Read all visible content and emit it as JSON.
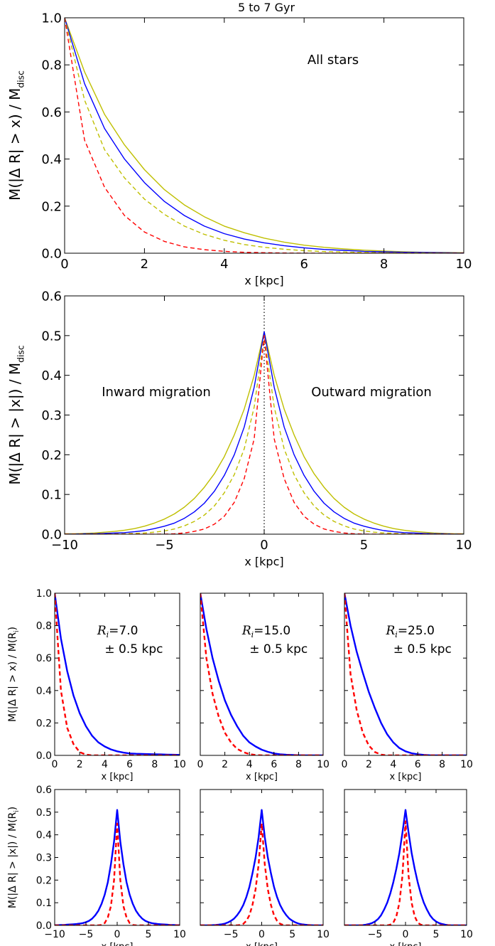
{
  "figure_title": "5 to 7 Gyr",
  "colors": {
    "blue": "#0000ff",
    "red": "#ff0000",
    "olive": "#bfbf00",
    "axis": "#000000"
  },
  "chart_data": [
    {
      "type": "line",
      "title": "5 to 7 Gyr",
      "annotation": "All stars",
      "xlabel": "x [kpc]",
      "ylabel": "M(|Δ R| > x) / M",
      "ylabel_sub": "disc",
      "xlim": [
        0,
        10
      ],
      "ylim": [
        0,
        1
      ],
      "xticks": [
        "0",
        "2",
        "4",
        "6",
        "8",
        "10"
      ],
      "yticks": [
        "0.0",
        "0.2",
        "0.4",
        "0.6",
        "0.8",
        "1.0"
      ],
      "grid": false,
      "x": [
        0,
        0.5,
        1,
        1.5,
        2,
        2.5,
        3,
        3.5,
        4,
        4.5,
        5,
        5.5,
        6,
        6.5,
        7,
        7.5,
        8,
        8.5,
        9,
        9.5,
        10
      ],
      "series": [
        {
          "color": "olive",
          "style": "solid",
          "values": [
            1.0,
            0.77,
            0.59,
            0.46,
            0.355,
            0.27,
            0.205,
            0.155,
            0.115,
            0.087,
            0.064,
            0.047,
            0.034,
            0.025,
            0.018,
            0.013,
            0.009,
            0.006,
            0.004,
            0.003,
            0.002
          ]
        },
        {
          "color": "blue",
          "style": "solid",
          "values": [
            1.0,
            0.72,
            0.53,
            0.4,
            0.3,
            0.22,
            0.16,
            0.115,
            0.083,
            0.06,
            0.044,
            0.032,
            0.023,
            0.016,
            0.012,
            0.008,
            0.006,
            0.004,
            0.003,
            0.002,
            0.001
          ]
        },
        {
          "color": "olive",
          "style": "dashed",
          "values": [
            1.0,
            0.65,
            0.44,
            0.32,
            0.23,
            0.165,
            0.115,
            0.08,
            0.055,
            0.037,
            0.025,
            0.017,
            0.011,
            0.007,
            0.005,
            0.003,
            0.002,
            0.001,
            0.001,
            0.0,
            0.0
          ]
        },
        {
          "color": "red",
          "style": "dashed",
          "values": [
            1.0,
            0.48,
            0.28,
            0.16,
            0.09,
            0.05,
            0.027,
            0.015,
            0.008,
            0.004,
            0.002,
            0.001,
            0.0,
            0.0,
            0.0,
            0.0,
            0.0,
            0.0,
            0.0,
            0.0,
            0.0
          ]
        }
      ]
    },
    {
      "type": "line",
      "annotations": [
        "Inward migration",
        "Outward migration"
      ],
      "xlabel": "x [kpc]",
      "ylabel": "M(|Δ R| > |x|) / M",
      "ylabel_sub": "disc",
      "xlim": [
        -10,
        10
      ],
      "ylim": [
        0,
        0.6
      ],
      "xticks": [
        "−10",
        "−5",
        "0",
        "5",
        "10"
      ],
      "yticks": [
        "0.0",
        "0.1",
        "0.2",
        "0.3",
        "0.4",
        "0.5",
        "0.6"
      ],
      "grid": false,
      "vline_x": 0,
      "x": [
        0,
        0.5,
        1,
        1.5,
        2,
        2.5,
        3,
        3.5,
        4,
        4.5,
        5,
        5.5,
        6,
        6.5,
        7,
        7.5,
        8,
        8.5,
        9,
        9.5,
        10
      ],
      "symmetric_about_zero": true,
      "series": [
        {
          "color": "olive",
          "style": "solid",
          "values": [
            0.51,
            0.4,
            0.315,
            0.25,
            0.195,
            0.152,
            0.118,
            0.09,
            0.068,
            0.051,
            0.038,
            0.028,
            0.02,
            0.014,
            0.01,
            0.007,
            0.005,
            0.003,
            0.002,
            0.001,
            0.001
          ]
        },
        {
          "color": "blue",
          "style": "solid",
          "values": [
            0.51,
            0.37,
            0.27,
            0.2,
            0.148,
            0.108,
            0.078,
            0.056,
            0.04,
            0.028,
            0.02,
            0.014,
            0.009,
            0.006,
            0.004,
            0.003,
            0.002,
            0.001,
            0.001,
            0.0,
            0.0
          ]
        },
        {
          "color": "olive",
          "style": "dashed",
          "values": [
            0.5,
            0.32,
            0.215,
            0.15,
            0.104,
            0.071,
            0.048,
            0.032,
            0.021,
            0.013,
            0.008,
            0.005,
            0.003,
            0.002,
            0.001,
            0.0,
            0.0,
            0.0,
            0.0,
            0.0,
            0.0
          ]
        },
        {
          "color": "red",
          "style": "dashed",
          "values": [
            0.5,
            0.24,
            0.14,
            0.08,
            0.045,
            0.025,
            0.013,
            0.007,
            0.003,
            0.001,
            0.0,
            0.0,
            0.0,
            0.0,
            0.0,
            0.0,
            0.0,
            0.0,
            0.0,
            0.0,
            0.0
          ]
        }
      ]
    },
    {
      "type": "line",
      "annotation_r": "R",
      "annotation_sub": "i",
      "annotation_eq": "=7.0",
      "annotation_line2": "± 0.5 kpc",
      "xlabel": "x [kpc]",
      "ylabel": "M(|Δ R| > x) / M(R",
      "ylabel_sub": "i",
      "ylabel_end": ")",
      "xlim": [
        0,
        10
      ],
      "ylim": [
        0,
        1
      ],
      "xticks": [
        "0",
        "2",
        "4",
        "6",
        "8",
        "10"
      ],
      "yticks": [
        "0.0",
        "0.2",
        "0.4",
        "0.6",
        "0.8",
        "1.0"
      ],
      "x": [
        0,
        0.5,
        1,
        1.5,
        2,
        2.5,
        3,
        3.5,
        4,
        4.5,
        5,
        5.5,
        6,
        6.5,
        7,
        7.5,
        8,
        8.5,
        9,
        9.5,
        10
      ],
      "series": [
        {
          "color": "blue",
          "style": "solid",
          "values": [
            1.0,
            0.72,
            0.52,
            0.37,
            0.26,
            0.18,
            0.12,
            0.08,
            0.055,
            0.037,
            0.025,
            0.017,
            0.012,
            0.01,
            0.009,
            0.008,
            0.007,
            0.006,
            0.005,
            0.004,
            0.003
          ]
        },
        {
          "color": "red",
          "style": "dashed",
          "values": [
            1.0,
            0.4,
            0.17,
            0.07,
            0.02,
            0.005,
            0.0,
            0.0,
            0.0,
            0.0,
            0.0,
            0.0,
            0.0,
            0.0,
            0.0,
            0.0,
            0.0,
            0.0,
            0.0,
            0.0,
            0.0
          ]
        }
      ]
    },
    {
      "type": "line",
      "annotation_r": "R",
      "annotation_sub": "i",
      "annotation_eq": "=15.0",
      "annotation_line2": "± 0.5 kpc",
      "xlabel": "x [kpc]",
      "xlim": [
        0,
        10
      ],
      "ylim": [
        0,
        1
      ],
      "xticks": [
        "0",
        "2",
        "4",
        "6",
        "8",
        "10"
      ],
      "x": [
        0,
        0.5,
        1,
        1.5,
        2,
        2.5,
        3,
        3.5,
        4,
        4.5,
        5,
        5.5,
        6,
        6.5,
        7,
        7.5,
        8,
        8.5,
        9,
        9.5,
        10
      ],
      "series": [
        {
          "color": "blue",
          "style": "solid",
          "values": [
            1.0,
            0.78,
            0.6,
            0.46,
            0.34,
            0.25,
            0.18,
            0.12,
            0.08,
            0.055,
            0.035,
            0.022,
            0.012,
            0.007,
            0.004,
            0.002,
            0.001,
            0.0,
            0.0,
            0.0,
            0.0
          ]
        },
        {
          "color": "red",
          "style": "dashed",
          "values": [
            1.0,
            0.6,
            0.38,
            0.24,
            0.14,
            0.08,
            0.04,
            0.02,
            0.008,
            0.002,
            0.0,
            0.0,
            0.0,
            0.0,
            0.0,
            0.0,
            0.0,
            0.0,
            0.0,
            0.0,
            0.0
          ]
        }
      ]
    },
    {
      "type": "line",
      "annotation_r": "R",
      "annotation_sub": "i",
      "annotation_eq": "=25.0",
      "annotation_line2": "± 0.5 kpc",
      "xlabel": "x [kpc]",
      "xlim": [
        0,
        10
      ],
      "ylim": [
        0,
        1
      ],
      "xticks": [
        "0",
        "2",
        "4",
        "6",
        "8",
        "10"
      ],
      "x": [
        0,
        0.5,
        1,
        1.5,
        2,
        2.5,
        3,
        3.5,
        4,
        4.5,
        5,
        5.5,
        6,
        6.5,
        7,
        7.5,
        8,
        8.5,
        9,
        9.5,
        10
      ],
      "series": [
        {
          "color": "blue",
          "style": "solid",
          "values": [
            1.0,
            0.8,
            0.64,
            0.51,
            0.39,
            0.29,
            0.2,
            0.13,
            0.08,
            0.045,
            0.025,
            0.013,
            0.007,
            0.003,
            0.001,
            0.0,
            0.0,
            0.0,
            0.0,
            0.0,
            0.0
          ]
        },
        {
          "color": "red",
          "style": "dashed",
          "values": [
            1.0,
            0.5,
            0.28,
            0.14,
            0.06,
            0.02,
            0.005,
            0.0,
            0.0,
            0.0,
            0.0,
            0.0,
            0.0,
            0.0,
            0.0,
            0.0,
            0.0,
            0.0,
            0.0,
            0.0,
            0.0
          ]
        }
      ]
    },
    {
      "type": "line",
      "xlabel": "x [kpc]",
      "ylabel": "M(|Δ R| > |x|) / M(R",
      "ylabel_sub": "i",
      "ylabel_end": ")",
      "xlim": [
        -10,
        10
      ],
      "ylim": [
        0,
        0.6
      ],
      "xticks": [
        "−10",
        "−5",
        "0",
        "5",
        "10"
      ],
      "yticks": [
        "0.0",
        "0.1",
        "0.2",
        "0.3",
        "0.4",
        "0.5",
        "0.6"
      ],
      "x": [
        0,
        0.5,
        1,
        1.5,
        2,
        2.5,
        3,
        3.5,
        4,
        4.5,
        5,
        5.5,
        6,
        6.5,
        7,
        7.5,
        8,
        8.5,
        9,
        9.5,
        10
      ],
      "symmetric_about_zero": true,
      "series": [
        {
          "color": "blue",
          "style": "solid",
          "values": [
            0.51,
            0.37,
            0.27,
            0.19,
            0.135,
            0.095,
            0.065,
            0.045,
            0.03,
            0.02,
            0.014,
            0.01,
            0.008,
            0.006,
            0.005,
            0.004,
            0.003,
            0.002,
            0.002,
            0.001,
            0.001
          ]
        },
        {
          "color": "red",
          "style": "dashed",
          "values": [
            0.45,
            0.2,
            0.085,
            0.035,
            0.01,
            0.002,
            0.0,
            0.0,
            0.0,
            0.0,
            0.0,
            0.0,
            0.0,
            0.0,
            0.0,
            0.0,
            0.0,
            0.0,
            0.0,
            0.0,
            0.0
          ]
        }
      ]
    },
    {
      "type": "line",
      "xlabel": "x [kpc]",
      "xlim": [
        -10,
        10
      ],
      "ylim": [
        0,
        0.6
      ],
      "xticks": [
        "−5",
        "0",
        "5",
        "10"
      ],
      "x": [
        0,
        0.5,
        1,
        1.5,
        2,
        2.5,
        3,
        3.5,
        4,
        4.5,
        5,
        5.5,
        6,
        6.5,
        7,
        7.5,
        8,
        8.5,
        9,
        9.5,
        10
      ],
      "symmetric_about_zero": true,
      "series": [
        {
          "color": "blue",
          "style": "solid",
          "values": [
            0.51,
            0.39,
            0.3,
            0.23,
            0.17,
            0.125,
            0.09,
            0.064,
            0.045,
            0.03,
            0.02,
            0.013,
            0.008,
            0.005,
            0.003,
            0.002,
            0.001,
            0.0,
            0.0,
            0.0,
            0.0
          ]
        },
        {
          "color": "red",
          "style": "dashed",
          "values": [
            0.45,
            0.27,
            0.16,
            0.09,
            0.045,
            0.02,
            0.007,
            0.002,
            0.0,
            0.0,
            0.0,
            0.0,
            0.0,
            0.0,
            0.0,
            0.0,
            0.0,
            0.0,
            0.0,
            0.0,
            0.0
          ]
        }
      ]
    },
    {
      "type": "line",
      "xlabel": "x [kpc]",
      "xlim": [
        -10,
        10
      ],
      "ylim": [
        0,
        0.6
      ],
      "xticks": [
        "−5",
        "0",
        "5",
        "10"
      ],
      "x": [
        0,
        0.5,
        1,
        1.5,
        2,
        2.5,
        3,
        3.5,
        4,
        4.5,
        5,
        5.5,
        6,
        6.5,
        7,
        7.5,
        8,
        8.5,
        9,
        9.5,
        10
      ],
      "symmetric_about_zero": true,
      "series": [
        {
          "color": "blue",
          "style": "solid",
          "values": [
            0.51,
            0.41,
            0.32,
            0.25,
            0.19,
            0.14,
            0.1,
            0.07,
            0.045,
            0.028,
            0.017,
            0.01,
            0.006,
            0.003,
            0.001,
            0.0,
            0.0,
            0.0,
            0.0,
            0.0,
            0.0
          ]
        },
        {
          "color": "red",
          "style": "dashed",
          "values": [
            0.46,
            0.22,
            0.1,
            0.04,
            0.012,
            0.003,
            0.0,
            0.0,
            0.0,
            0.0,
            0.0,
            0.0,
            0.0,
            0.0,
            0.0,
            0.0,
            0.0,
            0.0,
            0.0,
            0.0,
            0.0
          ]
        }
      ]
    }
  ]
}
